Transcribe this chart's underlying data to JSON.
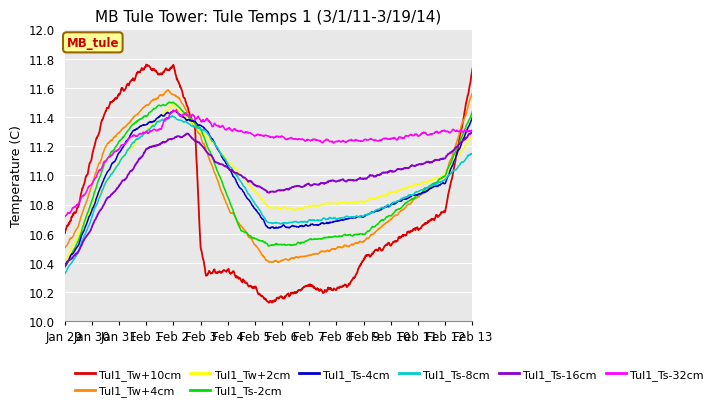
{
  "title": "MB Tule Tower: Tule Temps 1 (3/1/11-3/19/14)",
  "ylabel": "Temperature (C)",
  "ylim": [
    10.0,
    12.0
  ],
  "yticks": [
    10.0,
    10.2,
    10.4,
    10.6,
    10.8,
    11.0,
    11.2,
    11.4,
    11.6,
    11.8,
    12.0
  ],
  "xtick_labels": [
    "Jan 29",
    "Jan 30",
    "Jan 31",
    "Feb 1",
    "Feb 2",
    "Feb 3",
    "Feb 4",
    "Feb 5",
    "Feb 6",
    "Feb 7",
    "Feb 8",
    "Feb 9",
    "Feb 10",
    "Feb 11",
    "Feb 12",
    "Feb 13"
  ],
  "n_points": 1200,
  "background_color": "#e8e8e8",
  "grid_color": "#ffffff",
  "series": [
    {
      "label": "Tul1_Tw+10cm",
      "color": "#dd0000",
      "lw": 1.3
    },
    {
      "label": "Tul1_Tw+4cm",
      "color": "#ff8800",
      "lw": 1.1
    },
    {
      "label": "Tul1_Tw+2cm",
      "color": "#ffff00",
      "lw": 1.1
    },
    {
      "label": "Tul1_Ts-2cm",
      "color": "#00dd00",
      "lw": 1.1
    },
    {
      "label": "Tul1_Ts-4cm",
      "color": "#0000cc",
      "lw": 1.1
    },
    {
      "label": "Tul1_Ts-8cm",
      "color": "#00cccc",
      "lw": 1.1
    },
    {
      "label": "Tul1_Ts-16cm",
      "color": "#8800cc",
      "lw": 1.3
    },
    {
      "label": "Tul1_Ts-32cm",
      "color": "#ff00ff",
      "lw": 1.1
    }
  ],
  "legend_box": {
    "label": "MB_tule",
    "facecolor": "#ffff99",
    "edgecolor": "#996600",
    "textcolor": "#cc0000"
  },
  "title_fontsize": 11,
  "axis_fontsize": 9,
  "tick_fontsize": 8.5,
  "legend_fontsize": 8
}
